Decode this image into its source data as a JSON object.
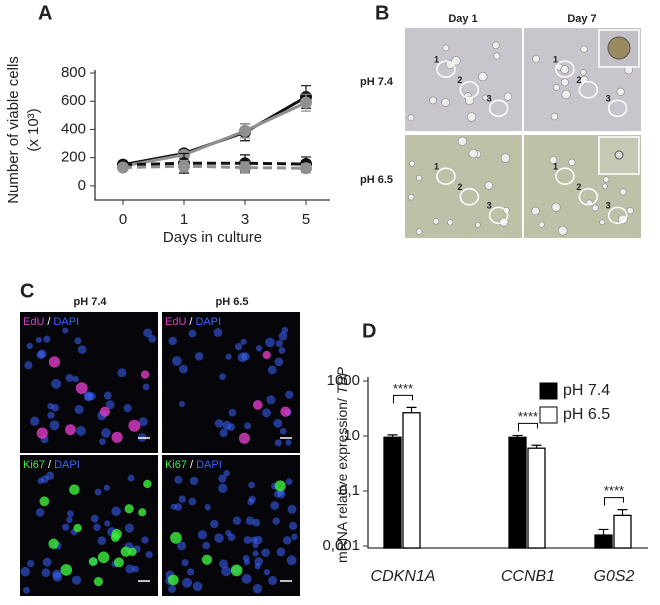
{
  "panel_letters": [
    "A",
    "B",
    "C",
    "D"
  ],
  "chart_data": [
    {
      "type": "line",
      "x_label": "Days in culture",
      "y_label": [
        "Number of viable cells",
        "(x 10³)"
      ],
      "categories": [
        "0",
        "1",
        "3",
        "5"
      ],
      "ylim": [
        -100,
        800
      ],
      "yticks": [
        0,
        200,
        400,
        600,
        800
      ],
      "series": [
        {
          "color": "#111111",
          "style": "solid",
          "values": [
            150,
            230,
            380,
            630
          ],
          "errors": [
            20,
            25,
            60,
            80
          ]
        },
        {
          "color": "#909090",
          "style": "solid",
          "values": [
            140,
            220,
            390,
            590
          ],
          "errors": [
            20,
            25,
            50,
            60
          ]
        },
        {
          "color": "#111111",
          "style": "dashed",
          "values": [
            150,
            160,
            160,
            155
          ],
          "errors": [
            20,
            70,
            60,
            50
          ]
        },
        {
          "color": "#909090",
          "style": "dashed",
          "values": [
            130,
            140,
            130,
            125
          ],
          "errors": [
            20,
            40,
            40,
            30
          ]
        }
      ]
    },
    {
      "type": "bar",
      "log_scale": true,
      "legend": "top-right",
      "y_label": [
        "mRNA relative expression/ ",
        "TBP"
      ],
      "categories": [
        "CDKN1A",
        "CCNB1",
        "G0S2"
      ],
      "ylim": [
        0.001,
        1000
      ],
      "yticks": [
        {
          "value": 0.001,
          "label": "0,001"
        },
        {
          "value": 0.1,
          "label": "0,1"
        },
        10,
        1000
      ],
      "series": [
        {
          "name": "pH 7.4",
          "color": "#000000",
          "values": [
            9,
            9,
            0.0025
          ],
          "errors": [
            2,
            1.5,
            0.0015
          ]
        },
        {
          "name": "pH 6.5",
          "color": "#ffffff",
          "values": [
            70,
            3.6,
            0.013
          ],
          "errors": [
            40,
            1,
            0.008
          ]
        }
      ],
      "annotations": [
        "****",
        "****",
        "****"
      ]
    }
  ],
  "panel_b": {
    "columns": [
      "Day 1",
      "Day 7"
    ],
    "rows": [
      "pH 7.4",
      "pH 6.5"
    ],
    "cell_labels": [
      "1",
      "2",
      "3"
    ]
  },
  "panel_c": {
    "columns": [
      "pH 7.4",
      "pH 6.5"
    ],
    "stains": [
      {
        "name": "EdU",
        "color": "#e03cc8"
      },
      {
        "name": "Ki67",
        "color": "#3cf03c"
      }
    ],
    "separator": "/",
    "counterstain": {
      "name": "DAPI",
      "color": "#3c64ff"
    }
  }
}
